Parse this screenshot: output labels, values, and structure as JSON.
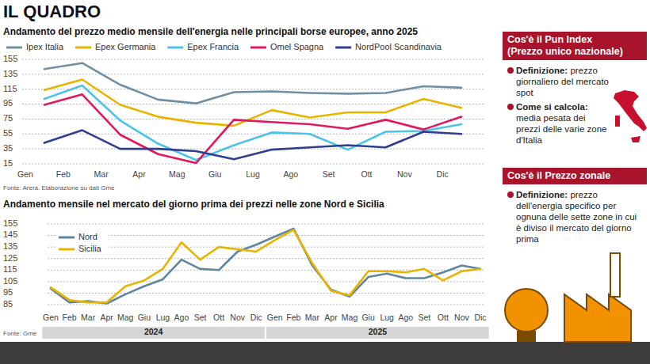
{
  "header": {
    "title": "IL QUADRO"
  },
  "chart_data": [
    {
      "type": "line",
      "title": "Andamento del prezzo medio mensile dell'energia nelle principali borse europee, anno 2025",
      "source": "Fonte: Arera. Elaborazione su dati Gme",
      "categories": [
        "Gen",
        "Feb",
        "Mar",
        "Apr",
        "Mag",
        "Giu",
        "Lug",
        "Ago",
        "Set",
        "Ott",
        "Nov",
        "Dic"
      ],
      "ylim": [
        15,
        155
      ],
      "yticks": [
        15,
        35,
        55,
        75,
        95,
        115,
        135,
        155
      ],
      "grid": true,
      "legend": "top",
      "series": [
        {
          "name": "Ipex Italia",
          "color": "#6f8fa5",
          "values": [
            142,
            150,
            121,
            101,
            96,
            111,
            112,
            110,
            109,
            110,
            119,
            117
          ]
        },
        {
          "name": "Epex Germania",
          "color": "#e8b400",
          "values": [
            114,
            128,
            94,
            78,
            70,
            66,
            87,
            77,
            84,
            84,
            102,
            90
          ]
        },
        {
          "name": "Epex Francia",
          "color": "#4cc3e8",
          "values": [
            102,
            120,
            73,
            42,
            20,
            40,
            57,
            55,
            34,
            58,
            59,
            68
          ]
        },
        {
          "name": "Omel Spagna",
          "color": "#e0195f",
          "values": [
            94,
            108,
            54,
            28,
            16,
            74,
            71,
            68,
            62,
            74,
            61,
            78
          ]
        },
        {
          "name": "NordPool Scandinavia",
          "color": "#2e3f8f",
          "values": [
            43,
            60,
            35,
            35,
            32,
            21,
            34,
            37,
            40,
            37,
            58,
            55
          ]
        }
      ]
    },
    {
      "type": "line",
      "title": "Andamento mensile nel mercato del giorno prima dei prezzi nelle zone Nord e Sicilia",
      "source": "Fonte: Gme",
      "categories": [
        "Gen",
        "Feb",
        "Mar",
        "Apr",
        "Mag",
        "Giu",
        "Lug",
        "Ago",
        "Set",
        "Ott",
        "Nov",
        "Dic",
        "Gen",
        "Feb",
        "Mar",
        "Apr",
        "Mag",
        "Giu",
        "Lug",
        "Ago",
        "Set",
        "Ott",
        "Nov",
        "Dic"
      ],
      "category_groups": [
        {
          "label": "2024",
          "count": 12
        },
        {
          "label": "2025",
          "count": 12
        }
      ],
      "ylim": [
        85,
        155
      ],
      "yticks": [
        85,
        95,
        105,
        115,
        125,
        135,
        145,
        155
      ],
      "grid": true,
      "legend": "top-left",
      "series": [
        {
          "name": "Nord",
          "color": "#5f85a0",
          "values": [
            99,
            87,
            88,
            86,
            94,
            101,
            107,
            124,
            116,
            115,
            131,
            137,
            144,
            151,
            119,
            98,
            92,
            109,
            112,
            108,
            108,
            113,
            119,
            116
          ]
        },
        {
          "name": "Sicilia",
          "color": "#e8b400",
          "values": [
            100,
            89,
            87,
            87,
            101,
            106,
            116,
            139,
            124,
            135,
            133,
            131,
            141,
            150,
            121,
            97,
            93,
            114,
            114,
            113,
            116,
            106,
            114,
            116
          ]
        }
      ]
    }
  ],
  "info_boxes": [
    {
      "title": "Cos'è il Pun Index",
      "subtitle": "(Prezzo unico nazionale)",
      "items": [
        {
          "term": "Definizione:",
          "text": "prezzo giornaliero del mercato spot"
        },
        {
          "term": "Come si calcola:",
          "text": "media pesata dei prezzi delle varie zone d'Italia"
        }
      ]
    },
    {
      "title": "Cos'è il Prezzo zonale",
      "items": [
        {
          "term": "Definizione:",
          "text": "prezzo dell'energia specifico per ognuna delle sette zone in cui è diviso il mercato del giorno prima"
        }
      ]
    }
  ]
}
